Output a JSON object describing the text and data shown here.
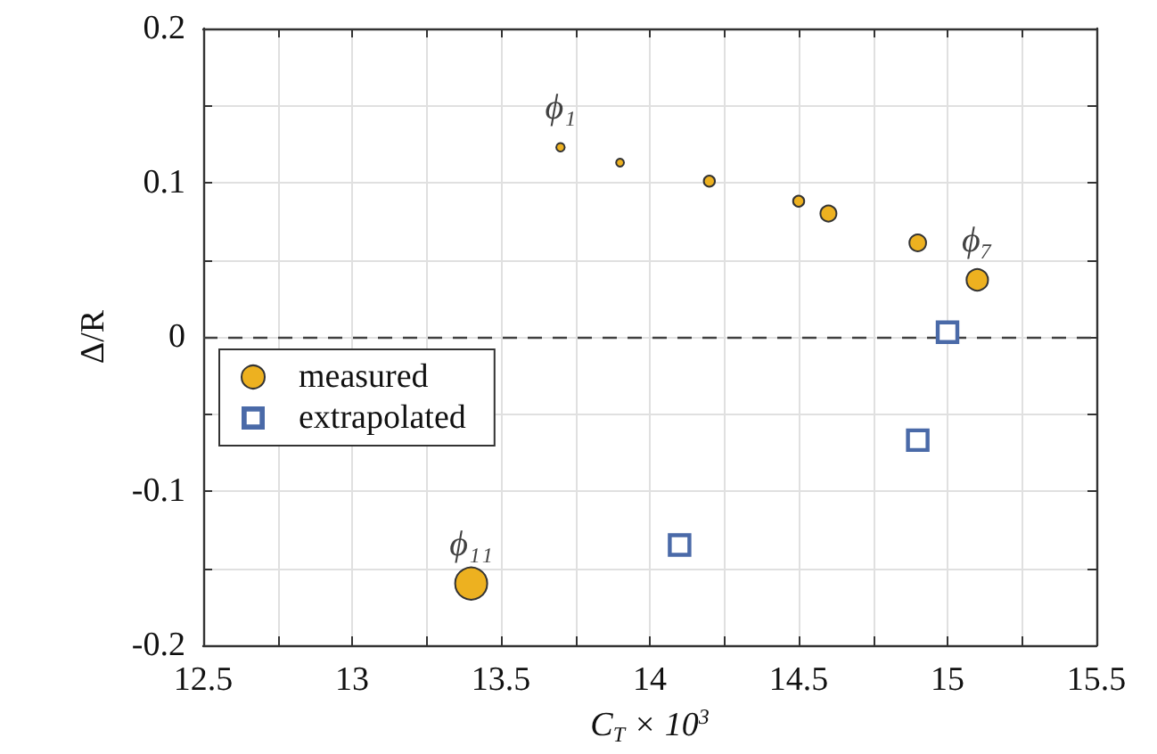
{
  "chart_data": {
    "type": "bubble",
    "xlabel": "C$_{T}$ × 10$^{3}$",
    "ylabel": "Δ/R",
    "xlim": [
      12.5,
      15.5
    ],
    "xticks": [
      12.5,
      {
        "value": 12.75,
        "label": null
      },
      13,
      {
        "value": 13.25,
        "label": null
      },
      13.5,
      {
        "value": 13.75,
        "label": null
      },
      14,
      {
        "value": 14.25,
        "label": null
      },
      14.5,
      {
        "value": 14.75,
        "label": null
      },
      15,
      {
        "value": 15.25,
        "label": null
      },
      15.5
    ],
    "ylim": [
      -0.2,
      0.2
    ],
    "yticks": [
      -0.2,
      {
        "value": -0.15,
        "label": null
      },
      -0.1,
      {
        "value": -0.05,
        "label": null
      },
      0,
      {
        "value": 0.05,
        "label": null
      },
      0.1,
      {
        "value": 0.15,
        "label": null
      },
      0.2
    ],
    "grid": true,
    "legend": "left",
    "series": [
      {
        "name": "measured",
        "marker": "circle",
        "color": "#edb120",
        "x": [
          13.7,
          13.9,
          14.2,
          14.5,
          14.6,
          14.9,
          15.1,
          13.4
        ],
        "values": [
          0.123,
          0.113,
          0.101,
          0.088,
          0.08,
          0.061,
          0.037,
          -0.16
        ],
        "sizes": [
          0.07,
          0.06,
          0.12,
          0.12,
          0.25,
          0.27,
          0.45,
          1
        ]
      },
      {
        "name": "extrapolated",
        "type": "scatter",
        "marker": "square",
        "color": "#4a6aa8",
        "x": [
          14.1,
          14.9,
          15.0
        ],
        "values": [
          -0.135,
          -0.067,
          0.003
        ]
      }
    ],
    "ref_lines": [
      {
        "axis": "y",
        "value": 0,
        "color": "#404040",
        "line_style": "dashed"
      }
    ],
    "annotations": [
      {
        "text": "ϕ₁",
        "x": 13.7,
        "y": 0.123
      },
      {
        "text": "ϕ₇",
        "x": 15.1,
        "y": 0.037
      },
      {
        "text": "ϕ₁₁",
        "x": 13.4,
        "y": -0.16
      }
    ]
  }
}
